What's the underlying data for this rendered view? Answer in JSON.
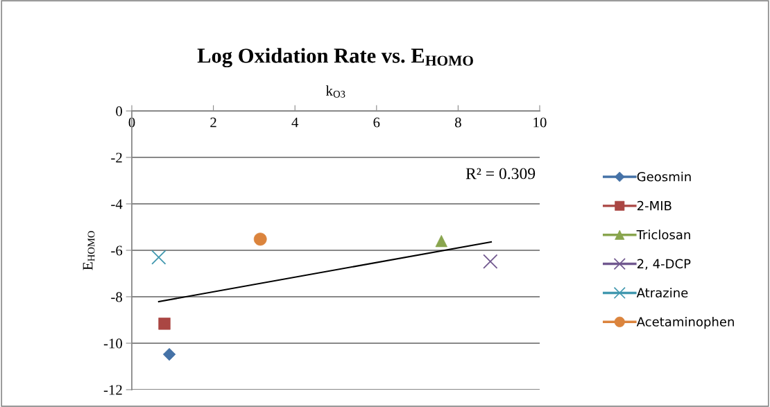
{
  "chart_data": {
    "type": "scatter",
    "title": "Log Oxidation Rate vs. E$_{HOMO}$",
    "xlabel": "k$_{O3}$",
    "ylabel": "E$_{HOMO}$",
    "xlim": [
      0,
      10
    ],
    "xticks": [
      0,
      2,
      4,
      6,
      8,
      10
    ],
    "ylim": [
      -12,
      0
    ],
    "yticks": [
      -12,
      -10,
      -8,
      -6,
      -4,
      -2,
      0
    ],
    "grid": "y",
    "legend": "right",
    "series": [
      {
        "name": "Geosmin",
        "color": "#4572a7",
        "marker": "diamond",
        "x": [
          0.92
        ],
        "values": [
          -10.48
        ]
      },
      {
        "name": "2-MIB",
        "color": "#aa4643",
        "marker": "square",
        "x": [
          0.8
        ],
        "values": [
          -9.16
        ]
      },
      {
        "name": "Triclosan",
        "color": "#89a54e",
        "marker": "triangle",
        "x": [
          7.59
        ],
        "values": [
          -5.6
        ]
      },
      {
        "name": "2, 4-DCP",
        "color": "#71588f",
        "marker": "cross",
        "x": [
          8.79
        ],
        "values": [
          -6.48
        ]
      },
      {
        "name": "Atrazine",
        "color": "#4198af",
        "marker": "cross",
        "x": [
          0.66
        ],
        "values": [
          -6.3
        ]
      },
      {
        "name": "Acetaminophen",
        "color": "#db843d",
        "marker": "circle",
        "x": [
          3.15
        ],
        "values": [
          -5.52
        ]
      },
      {
        "type": "line",
        "color": "#000000",
        "marker": "none",
        "x": [
          0.66,
          8.81
        ],
        "values": [
          -8.21,
          -5.64
        ]
      }
    ],
    "annotations": [
      "R² = 0.309"
    ]
  }
}
